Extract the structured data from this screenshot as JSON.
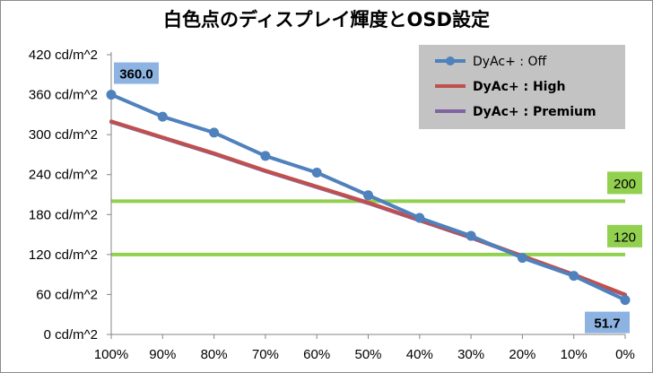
{
  "chart_data": {
    "type": "line",
    "title": "白色点のディスプレイ輝度とOSD設定",
    "xlabel": "",
    "ylabel": "",
    "categories": [
      "100%",
      "90%",
      "80%",
      "70%",
      "60%",
      "50%",
      "40%",
      "30%",
      "20%",
      "10%",
      "0%"
    ],
    "y_ticks": [
      "0 cd/m^2",
      "60 cd/m^2",
      "120 cd/m^2",
      "180 cd/m^2",
      "240 cd/m^2",
      "300 cd/m^2",
      "360 cd/m^2",
      "420 cd/m^2"
    ],
    "ylim": [
      0,
      420
    ],
    "grid": false,
    "legend_position": "top-right",
    "series": [
      {
        "name": "DyAc+ : Off",
        "color": "#4f81bd",
        "markers": true,
        "values": [
          360.0,
          327,
          303,
          268,
          243,
          209,
          175,
          148,
          115,
          88,
          51.7
        ]
      },
      {
        "name": "DyAc+ : High",
        "color": "#c0504d",
        "markers": false,
        "values": [
          320,
          296,
          272,
          246,
          222,
          198,
          172,
          146,
          118,
          90,
          60
        ]
      },
      {
        "name": "DyAc+ : Premium",
        "color": "#8064a2",
        "markers": false,
        "values": [
          319,
          295,
          271,
          245,
          221,
          197,
          171,
          145,
          117,
          89,
          59
        ]
      }
    ],
    "reference_lines": [
      {
        "value": 200,
        "label": "200",
        "color": "#92d050"
      },
      {
        "value": 120,
        "label": "120",
        "color": "#92d050"
      }
    ],
    "data_labels": [
      {
        "series": 0,
        "index": 0,
        "text": "360.0"
      },
      {
        "series": 0,
        "index": 10,
        "text": "51.7"
      }
    ]
  }
}
